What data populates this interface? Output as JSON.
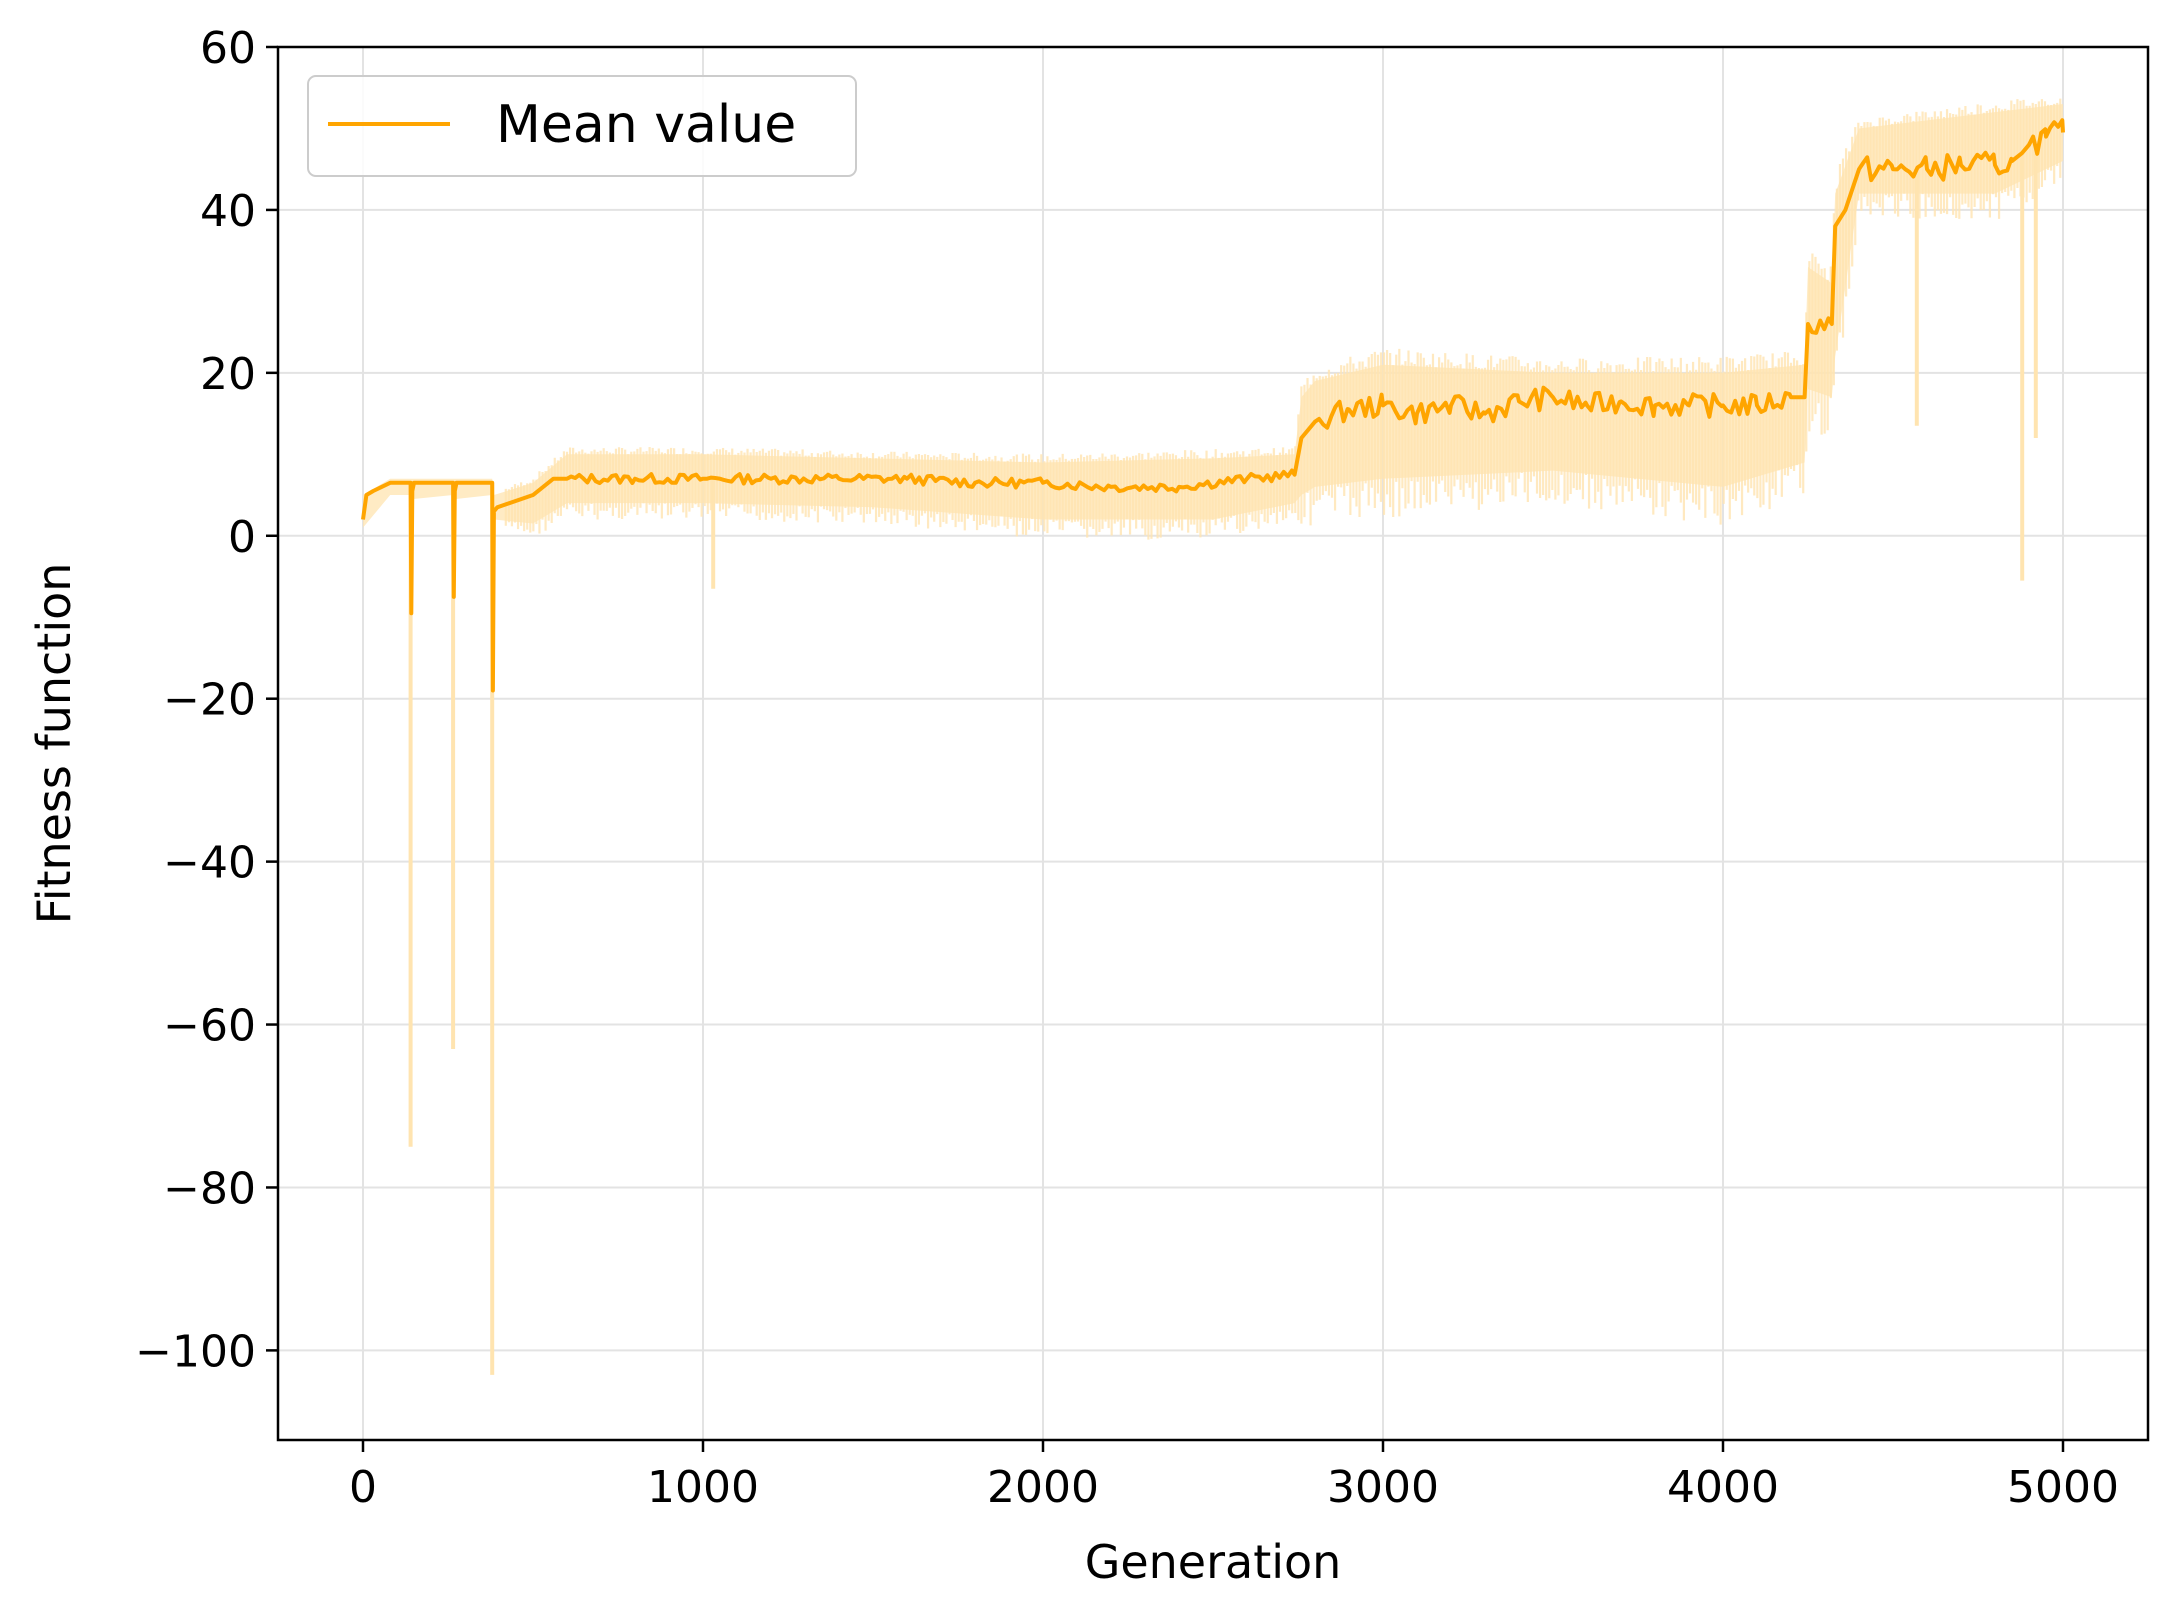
{
  "chart_data": {
    "type": "line",
    "xlabel": "Generation",
    "ylabel": "Fitness function",
    "xlim": [
      -250,
      5250
    ],
    "ylim": [
      -111,
      60
    ],
    "xticks": [
      0,
      1000,
      2000,
      3000,
      4000,
      5000
    ],
    "xtick_labels": [
      "0",
      "1000",
      "2000",
      "3000",
      "4000",
      "5000"
    ],
    "yticks": [
      -100,
      -80,
      -60,
      -40,
      -20,
      0,
      20,
      40,
      60
    ],
    "ytick_labels": [
      "−100",
      "−80",
      "−60",
      "−40",
      "−20",
      "0",
      "20",
      "40",
      "60"
    ],
    "grid": true,
    "legend": {
      "position": "top-left",
      "entries": [
        "Mean value"
      ]
    },
    "colors": {
      "mean": "#ffa500",
      "spread": "#ffe4b0"
    },
    "series": [
      {
        "name": "Mean value",
        "x": [
          0,
          10,
          30,
          80,
          140,
          142,
          145,
          150,
          265,
          267,
          270,
          275,
          380,
          382,
          385,
          395,
          500,
          560,
          600,
          800,
          1000,
          1200,
          1400,
          1600,
          1800,
          2000,
          2200,
          2400,
          2600,
          2740,
          2760,
          2800,
          2900,
          3000,
          3100,
          3200,
          3300,
          3400,
          3500,
          3600,
          3700,
          3800,
          3900,
          4000,
          4100,
          4200,
          4240,
          4250,
          4320,
          4330,
          4360,
          4400,
          4500,
          4600,
          4700,
          4800,
          4850,
          4880,
          4900,
          4950,
          5000
        ],
        "y": [
          2,
          5,
          5.5,
          6.5,
          6.5,
          -9.5,
          5.5,
          6.5,
          6.5,
          -7.5,
          5.5,
          6.5,
          6.5,
          -19,
          3,
          3.5,
          5,
          7,
          7,
          7,
          7,
          7,
          7,
          7,
          6.5,
          6.5,
          6,
          6,
          7,
          7.5,
          12,
          14,
          15.5,
          16,
          15,
          16,
          15,
          16.5,
          17,
          16,
          16.5,
          16,
          16,
          16,
          16,
          17,
          17,
          26,
          26,
          38,
          40,
          45,
          45,
          45,
          45.5,
          45.5,
          46,
          47,
          48,
          49,
          49.5
        ]
      },
      {
        "name": "",
        "type": "band",
        "x": [
          0,
          80,
          140,
          145,
          265,
          270,
          380,
          385,
          500,
          600,
          1000,
          1500,
          2000,
          2500,
          2740,
          2760,
          2800,
          3000,
          3500,
          4000,
          4240,
          4250,
          4320,
          4330,
          4400,
          4800,
          5000
        ],
        "lower": [
          1,
          5,
          5,
          4.5,
          5,
          4.5,
          5,
          2,
          1.5,
          4,
          4,
          3.5,
          2,
          2,
          4,
          5,
          6,
          7,
          8,
          6,
          9,
          18,
          17,
          22,
          42,
          42,
          46
        ],
        "upper": [
          5,
          7,
          7,
          7,
          7,
          7,
          7,
          5,
          6.5,
          10,
          10,
          9.5,
          9,
          9.5,
          10,
          17,
          19,
          21,
          20,
          20,
          21,
          33,
          31,
          42,
          50,
          52,
          53
        ]
      },
      {
        "name": "",
        "type": "spikes",
        "points": [
          {
            "x": 140,
            "y": -75
          },
          {
            "x": 265,
            "y": -63
          },
          {
            "x": 380,
            "y": -103
          },
          {
            "x": 1030,
            "y": -6.5
          },
          {
            "x": 4880,
            "y": -5.5
          },
          {
            "x": 4570,
            "y": 13.5
          },
          {
            "x": 4920,
            "y": 12
          }
        ]
      }
    ]
  }
}
